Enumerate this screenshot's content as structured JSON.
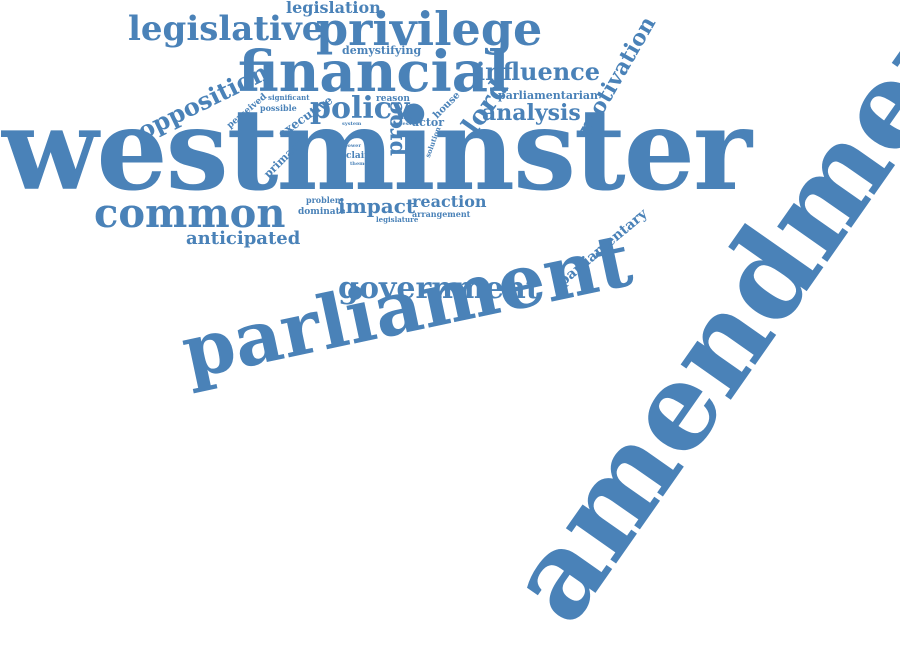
{
  "cloud": {
    "color": "#4a82b8",
    "words": {
      "westminster": "westminster",
      "amendment": "amendment",
      "parliament": "parliament",
      "financial": "financial",
      "privilege": "privilege",
      "legislative": "legislative",
      "common": "common",
      "government": "government",
      "policy": "policy",
      "influence": "influence",
      "opposition": "opposition",
      "analysis": "analysis",
      "motivation": "motivation",
      "lord": "lord",
      "impact": "impact",
      "reaction": "reaction",
      "anticipated": "anticipated",
      "legislation": "legislation",
      "parliamentary": "parliamentary",
      "parliamentarian": "parliamentarian",
      "demystifying": "demystifying",
      "proc": "proc",
      "executive": "executive",
      "primacy": "primacy",
      "perceived": "perceived",
      "actor": "actor",
      "house": "house",
      "reason": "reason",
      "significant": "significant",
      "possible": "possible",
      "claim": "claim",
      "problem": "problem",
      "dominate": "dominate",
      "legislature": "legislature",
      "arrangement": "arrangement",
      "solution": "solution",
      "system": "system",
      "power": "power",
      "change": "change",
      "success": "success",
      "theme": "theme",
      "view": "view"
    }
  }
}
